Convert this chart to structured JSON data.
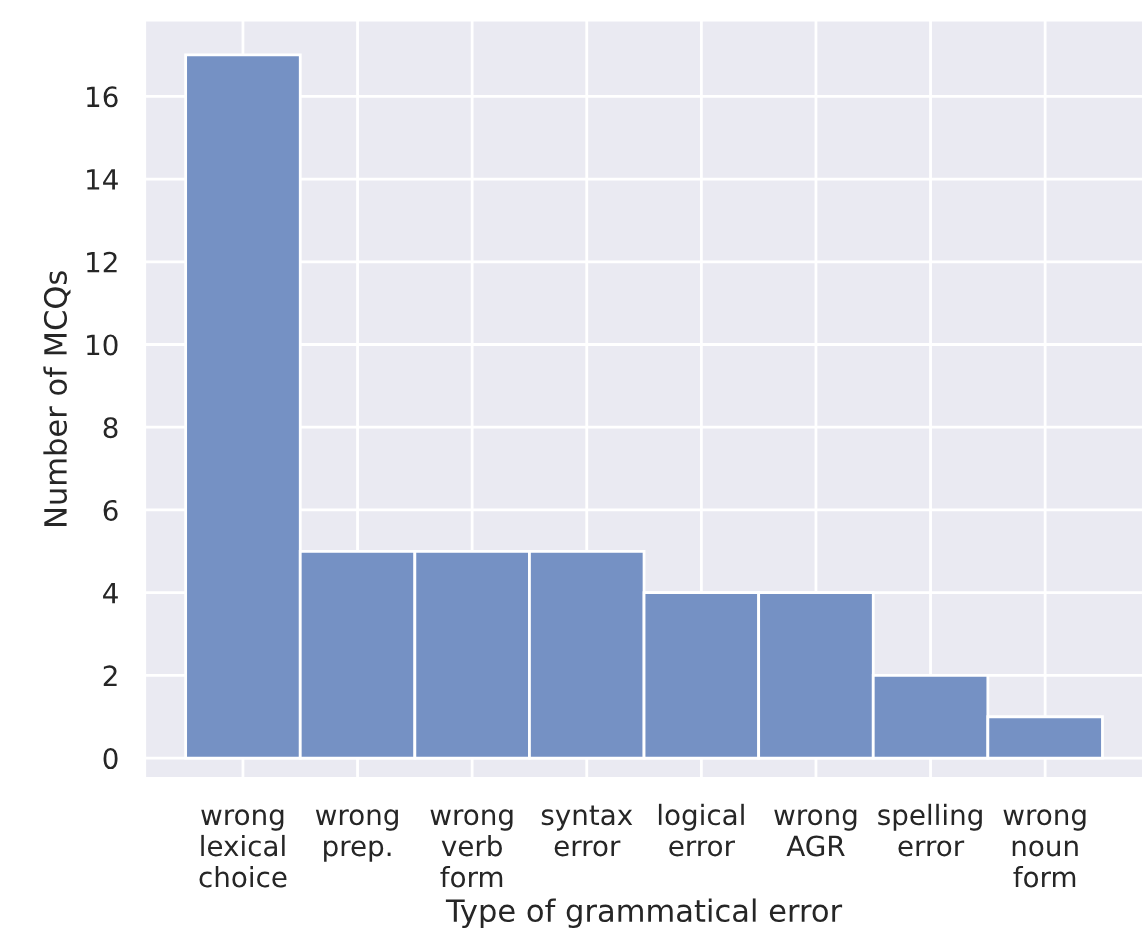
{
  "chart_data": {
    "type": "bar",
    "xlabel": "Type of grammatical error",
    "ylabel": "Number of MCQs",
    "categories": [
      "wrong\nlexical\nchoice",
      "wrong\nprep.",
      "wrong\nverb\nform",
      "syntax\nerror",
      "logical\nerror",
      "wrong\nAGR",
      "spelling\nerror",
      "wrong\nnoun\nform"
    ],
    "values": [
      17,
      5,
      5,
      5,
      4,
      4,
      2,
      1
    ],
    "color": "#7591c4",
    "ylim": [
      -0.5,
      17.85
    ],
    "yticks": [
      0,
      2,
      4,
      6,
      8,
      10,
      12,
      14,
      16
    ],
    "grid": true
  }
}
